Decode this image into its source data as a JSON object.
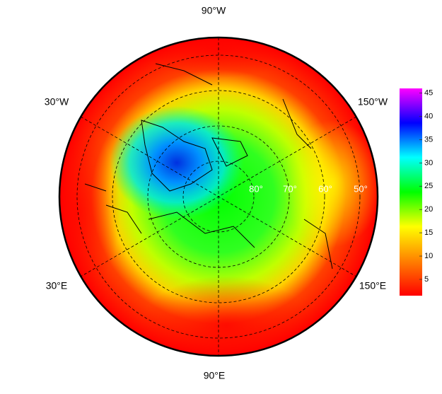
{
  "map": {
    "longitude_labels": [
      "90°W",
      "30°W",
      "150°W",
      "30°E",
      "150°E",
      "90°E"
    ],
    "latitude_labels": [
      "80°",
      "70°",
      "60°",
      "50°"
    ]
  },
  "colorbar": {
    "range": [
      1.5,
      46
    ],
    "ticks": [
      5,
      10,
      15,
      20,
      25,
      30,
      35,
      40,
      45
    ],
    "colors": [
      "#ff0000",
      "#ff8000",
      "#ffff00",
      "#00ff00",
      "#00ffff",
      "#0000ff",
      "#ff00ff"
    ]
  }
}
